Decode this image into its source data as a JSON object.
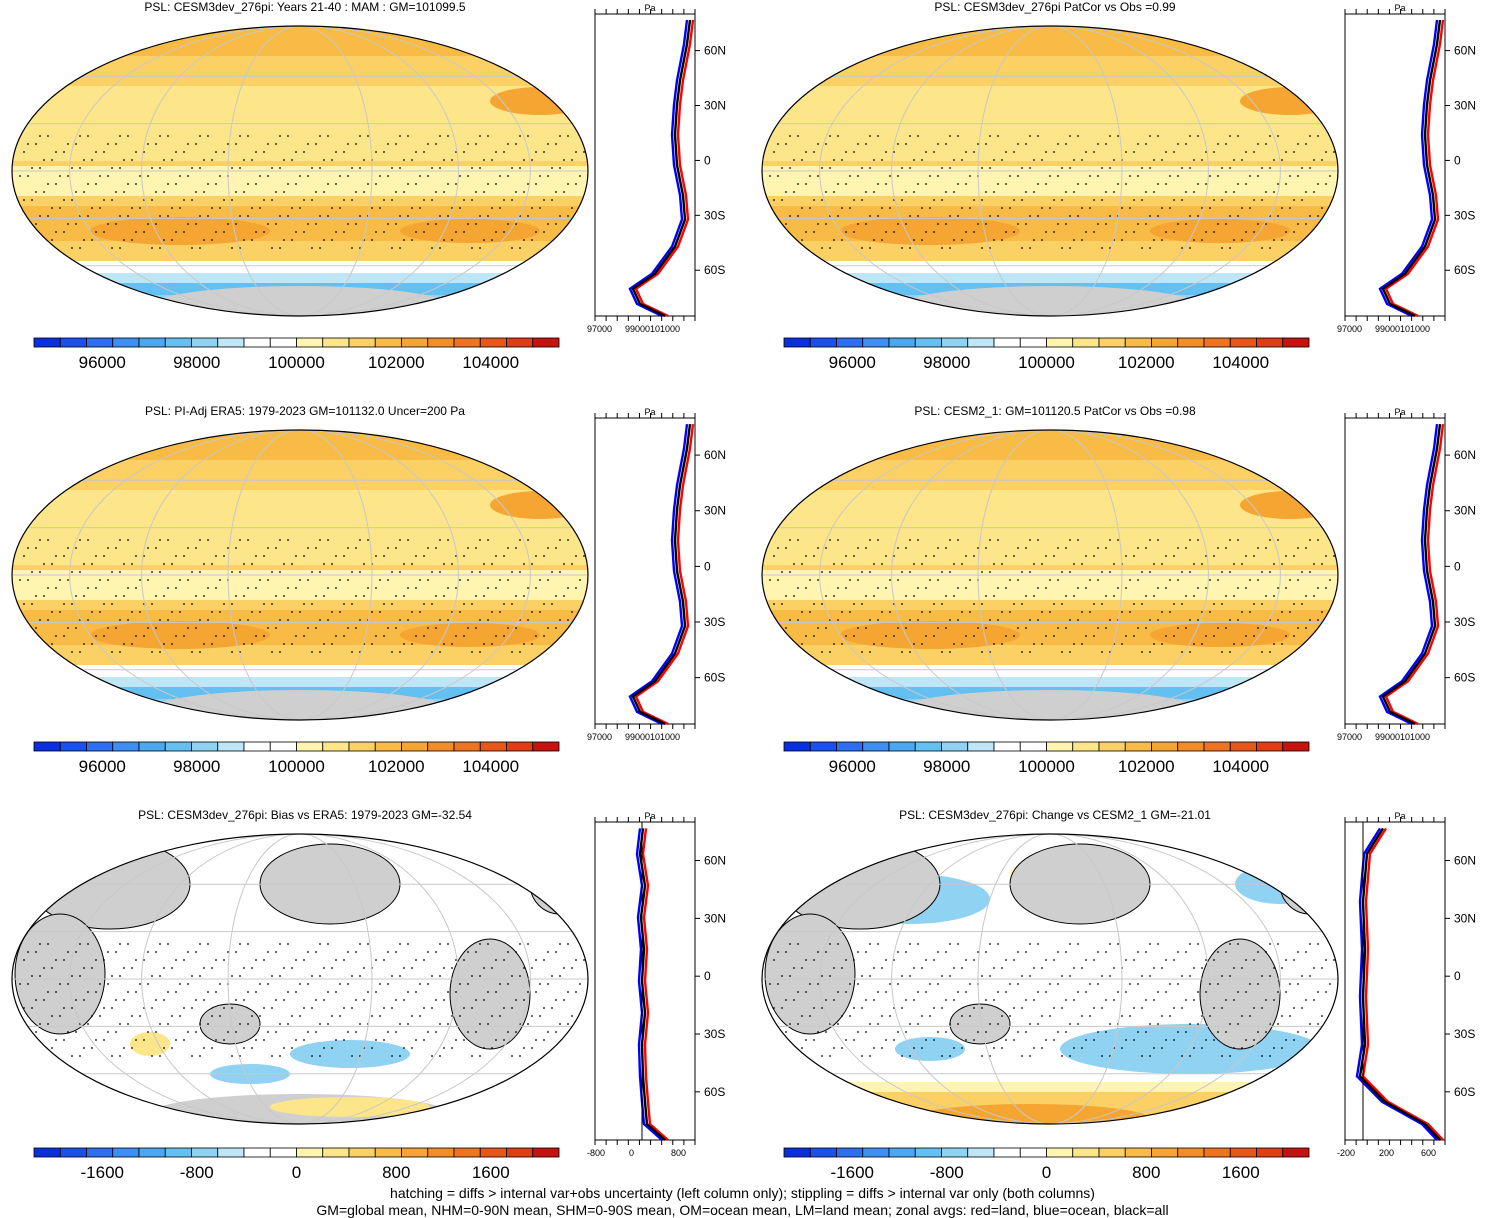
{
  "colors": {
    "palette_abs": [
      "#0a2fe0",
      "#1a50f0",
      "#2e6ef5",
      "#3f8ef5",
      "#4aa7f0",
      "#63c0f0",
      "#8fd2f2",
      "#bfe6f7",
      "#ffffff",
      "#ffffff",
      "#fff4b0",
      "#fde58a",
      "#fbd064",
      "#f8bb45",
      "#f5a531",
      "#f38e26",
      "#f0731f",
      "#ea561a",
      "#e23c14",
      "#c8120f"
    ],
    "land_gray": "#cfcfcf",
    "zonal_land": "#ff0000",
    "zonal_ocean": "#0000ff",
    "zonal_all": "#000000"
  },
  "panels": [
    {
      "title": "PSL: CESM3dev_276pi: Years 21-40 : MAM : GM=101099.5",
      "kind": "abs",
      "cbar_labels": [
        "96000",
        "98000",
        "100000",
        "102000",
        "104000"
      ],
      "side_top": "Pa",
      "side_bottom": [
        "97000",
        "99000101000"
      ],
      "lat_labels": [
        "60N",
        "30N",
        "0",
        "30S",
        "60S"
      ]
    },
    {
      "title": "PSL: CESM3dev_276pi PatCor vs Obs =0.99",
      "kind": "abs",
      "cbar_labels": [
        "96000",
        "98000",
        "100000",
        "102000",
        "104000"
      ],
      "side_top": "Pa",
      "side_bottom": [
        "97000",
        "99000101000"
      ],
      "lat_labels": [
        "60N",
        "30N",
        "0",
        "30S",
        "60S"
      ]
    },
    {
      "title": "PSL: PI-Adj ERA5: 1979-2023 GM=101132.0 Uncer=200 Pa",
      "kind": "abs",
      "cbar_labels": [
        "96000",
        "98000",
        "100000",
        "102000",
        "104000"
      ],
      "side_top": "Pa",
      "side_bottom": [
        "97000",
        "99000101000"
      ],
      "lat_labels": [
        "60N",
        "30N",
        "0",
        "30S",
        "60S"
      ]
    },
    {
      "title": "PSL: CESM2_1: GM=101120.5 PatCor vs Obs =0.98",
      "kind": "abs",
      "cbar_labels": [
        "96000",
        "98000",
        "100000",
        "102000",
        "104000"
      ],
      "side_top": "Pa",
      "side_bottom": [
        "97000",
        "99000101000"
      ],
      "lat_labels": [
        "60N",
        "30N",
        "0",
        "30S",
        "60S"
      ]
    },
    {
      "title": "PSL: CESM3dev_276pi: Bias vs ERA5: 1979-2023 GM=-32.54",
      "kind": "diff",
      "cbar_labels": [
        "-1600",
        "-800",
        "0",
        "800",
        "1600"
      ],
      "side_top": "Pa",
      "side_bottom": [
        "-800",
        "0",
        "800"
      ],
      "lat_labels": [
        "60N",
        "30N",
        "0",
        "30S",
        "60S"
      ]
    },
    {
      "title": "PSL: CESM3dev_276pi: Change vs CESM2_1 GM=-21.01",
      "kind": "diff",
      "cbar_labels": [
        "-1600",
        "-800",
        "0",
        "800",
        "1600"
      ],
      "side_top": "Pa",
      "side_bottom": [
        "-200",
        "200",
        "600"
      ],
      "lat_labels": [
        "60N",
        "30N",
        "0",
        "30S",
        "60S"
      ]
    }
  ],
  "footnote": {
    "line1": "hatching = diffs > internal var+obs uncertainty (left column only); stippling = diffs > internal var only (both columns)",
    "line2": "GM=global mean, NHM=0-90N mean, SHM=0-90S mean, OM=ocean mean, LM=land mean; zonal avgs: red=land, blue=ocean, black=all"
  },
  "chart_data": [
    {
      "type": "heatmap",
      "title": "PSL: CESM3dev_276pi: Years 21-40 : MAM : GM=101099.5",
      "colorbar_ticks": [
        96000,
        98000,
        100000,
        102000,
        104000
      ],
      "zonal_mean": {
        "lat": [
          -80,
          -70,
          -65,
          -60,
          -50,
          -40,
          -30,
          -20,
          -10,
          0,
          10,
          20,
          30,
          40,
          50,
          60,
          70,
          80
        ],
        "all": [
          100900,
          99000,
          98600,
          98800,
          100200,
          101500,
          101700,
          101400,
          101100,
          101050,
          101200,
          101500,
          101700,
          101500,
          101300,
          101200,
          101500,
          101700
        ]
      }
    },
    {
      "type": "heatmap",
      "title": "PSL: CESM3dev_276pi PatCor vs Obs =0.99",
      "colorbar_ticks": [
        96000,
        98000,
        100000,
        102000,
        104000
      ]
    },
    {
      "type": "heatmap",
      "title": "PSL: PI-Adj ERA5: 1979-2023 GM=101132.0 Uncer=200 Pa",
      "colorbar_ticks": [
        96000,
        98000,
        100000,
        102000,
        104000
      ]
    },
    {
      "type": "heatmap",
      "title": "PSL: CESM2_1: GM=101120.5 PatCor vs Obs =0.98",
      "colorbar_ticks": [
        96000,
        98000,
        100000,
        102000,
        104000
      ]
    },
    {
      "type": "heatmap",
      "title": "PSL: CESM3dev_276pi: Bias vs ERA5: 1979-2023 GM=-32.54",
      "colorbar_ticks": [
        -1600,
        -800,
        0,
        800,
        1600
      ]
    },
    {
      "type": "heatmap",
      "title": "PSL: CESM3dev_276pi: Change vs CESM2_1 GM=-21.01",
      "colorbar_ticks": [
        -1600,
        -800,
        0,
        800,
        1600
      ]
    }
  ]
}
